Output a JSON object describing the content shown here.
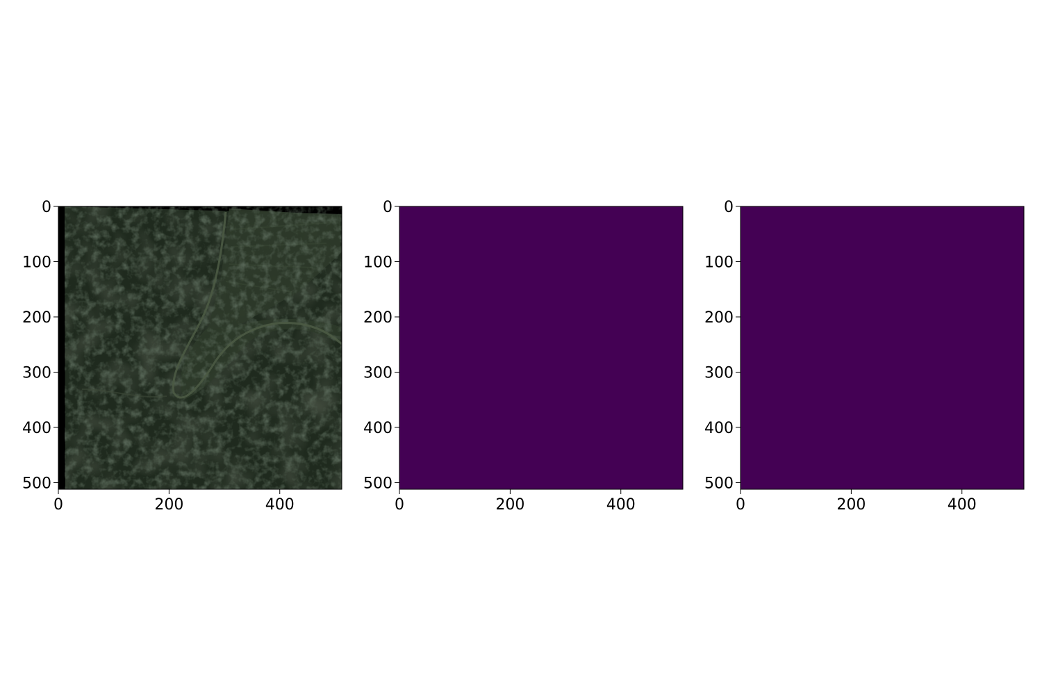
{
  "figure": {
    "panels": [
      {
        "name": "satellite-image",
        "content": "satellite-photo",
        "x_ticks": [
          "0",
          "200",
          "400"
        ],
        "y_ticks": [
          "0",
          "100",
          "200",
          "300",
          "400",
          "500"
        ],
        "x_tick_values": [
          0,
          200,
          400
        ],
        "y_tick_values": [
          0,
          100,
          200,
          300,
          400,
          500
        ],
        "xlim": [
          0,
          512
        ],
        "ylim": [
          512,
          0
        ]
      },
      {
        "name": "mask-prediction-1",
        "content": "uniform-colormap",
        "fill_color": "#440154",
        "x_ticks": [
          "0",
          "200",
          "400"
        ],
        "y_ticks": [
          "0",
          "100",
          "200",
          "300",
          "400",
          "500"
        ],
        "x_tick_values": [
          0,
          200,
          400
        ],
        "y_tick_values": [
          0,
          100,
          200,
          300,
          400,
          500
        ],
        "xlim": [
          0,
          512
        ],
        "ylim": [
          512,
          0
        ]
      },
      {
        "name": "mask-prediction-2",
        "content": "uniform-colormap",
        "fill_color": "#440154",
        "x_ticks": [
          "0",
          "200",
          "400"
        ],
        "y_ticks": [
          "0",
          "100",
          "200",
          "300",
          "400",
          "500"
        ],
        "x_tick_values": [
          0,
          200,
          400
        ],
        "y_tick_values": [
          0,
          100,
          200,
          300,
          400,
          500
        ],
        "xlim": [
          0,
          512
        ],
        "ylim": [
          512,
          0
        ]
      }
    ],
    "colors": {
      "viridis_min": "#440154",
      "no_data": "#000000",
      "terrain_dark": "#1f2a1e",
      "terrain_field": "#2e3b2a",
      "road": "#4b5a44"
    }
  }
}
